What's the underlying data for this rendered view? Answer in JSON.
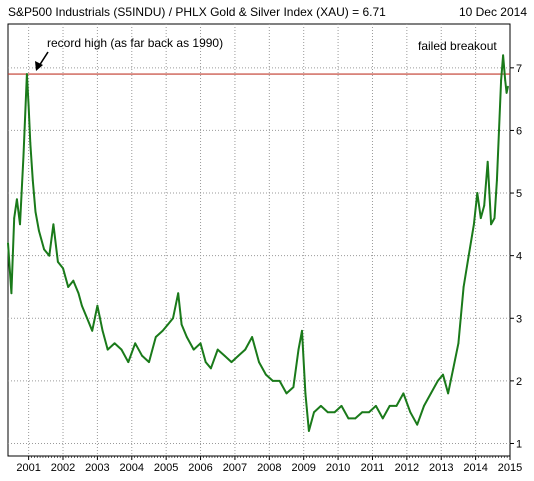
{
  "header": {
    "title": "S&P500 Industrials (S5INDU) / PHLX Gold & Silver Index (XAU) = 6.71",
    "date": "10 Dec 2014"
  },
  "chart_data": {
    "type": "line",
    "title": "S&P500 Industrials (S5INDU) / PHLX Gold & Silver Index (XAU) = 6.71",
    "xlabel": "",
    "ylabel": "",
    "xlim": [
      2000.4,
      2015.0
    ],
    "ylim": [
      0.8,
      7.7
    ],
    "y_ticks": [
      1,
      2,
      3,
      4,
      5,
      6,
      7
    ],
    "x_ticks": [
      2001,
      2002,
      2003,
      2004,
      2005,
      2006,
      2007,
      2008,
      2009,
      2010,
      2011,
      2012,
      2013,
      2014,
      2015
    ],
    "grid": true,
    "colors": {
      "line": "#1a7a1a",
      "reference_line": "#c0392b",
      "grid": "#9a9a9a"
    },
    "series": [
      {
        "x": [
          2000.4,
          2000.5,
          2000.58,
          2000.66,
          2000.75,
          2000.85,
          2000.95,
          2001.0,
          2001.05,
          2001.12,
          2001.2,
          2001.3,
          2001.45,
          2001.6,
          2001.72,
          2001.85,
          2002.0,
          2002.15,
          2002.3,
          2002.45,
          2002.55,
          2002.7,
          2002.85,
          2003.0,
          2003.15,
          2003.3,
          2003.5,
          2003.7,
          2003.9,
          2004.1,
          2004.3,
          2004.5,
          2004.7,
          2004.9,
          2005.05,
          2005.2,
          2005.35,
          2005.45,
          2005.6,
          2005.8,
          2006.0,
          2006.15,
          2006.3,
          2006.5,
          2006.7,
          2006.9,
          2007.1,
          2007.3,
          2007.5,
          2007.7,
          2007.9,
          2008.1,
          2008.3,
          2008.5,
          2008.7,
          2008.85,
          2008.95,
          2009.05,
          2009.15,
          2009.3,
          2009.5,
          2009.7,
          2009.9,
          2010.1,
          2010.3,
          2010.5,
          2010.7,
          2010.9,
          2011.1,
          2011.3,
          2011.5,
          2011.7,
          2011.9,
          2012.1,
          2012.3,
          2012.5,
          2012.7,
          2012.9,
          2013.05,
          2013.2,
          2013.35,
          2013.5,
          2013.65,
          2013.8,
          2013.95,
          2014.05,
          2014.15,
          2014.25,
          2014.35,
          2014.45,
          2014.55,
          2014.62,
          2014.68,
          2014.74,
          2014.8,
          2014.86,
          2014.9,
          2014.94
        ],
        "y": [
          4.2,
          3.4,
          4.6,
          4.9,
          4.5,
          5.6,
          6.9,
          6.4,
          5.8,
          5.2,
          4.7,
          4.4,
          4.1,
          4.0,
          4.5,
          3.9,
          3.8,
          3.5,
          3.6,
          3.4,
          3.2,
          3.0,
          2.8,
          3.2,
          2.8,
          2.5,
          2.6,
          2.5,
          2.3,
          2.6,
          2.4,
          2.3,
          2.7,
          2.8,
          2.9,
          3.0,
          3.4,
          2.9,
          2.7,
          2.5,
          2.6,
          2.3,
          2.2,
          2.5,
          2.4,
          2.3,
          2.4,
          2.5,
          2.7,
          2.3,
          2.1,
          2.0,
          2.0,
          1.8,
          1.9,
          2.5,
          2.8,
          1.8,
          1.2,
          1.5,
          1.6,
          1.5,
          1.5,
          1.6,
          1.4,
          1.4,
          1.5,
          1.5,
          1.6,
          1.4,
          1.6,
          1.6,
          1.8,
          1.5,
          1.3,
          1.6,
          1.8,
          2.0,
          2.1,
          1.8,
          2.2,
          2.6,
          3.5,
          4.0,
          4.5,
          5.0,
          4.6,
          4.8,
          5.5,
          4.5,
          4.6,
          5.2,
          6.0,
          6.8,
          7.2,
          6.8,
          6.6,
          6.7
        ]
      }
    ],
    "reference_lines": [
      {
        "y": 6.9
      }
    ],
    "annotations": [
      {
        "text": "record  high (as far back as 1990)",
        "x": 2001.0,
        "y": 6.9
      },
      {
        "text": "failed breakout",
        "x": 2014.6,
        "y": 7.3
      }
    ]
  }
}
